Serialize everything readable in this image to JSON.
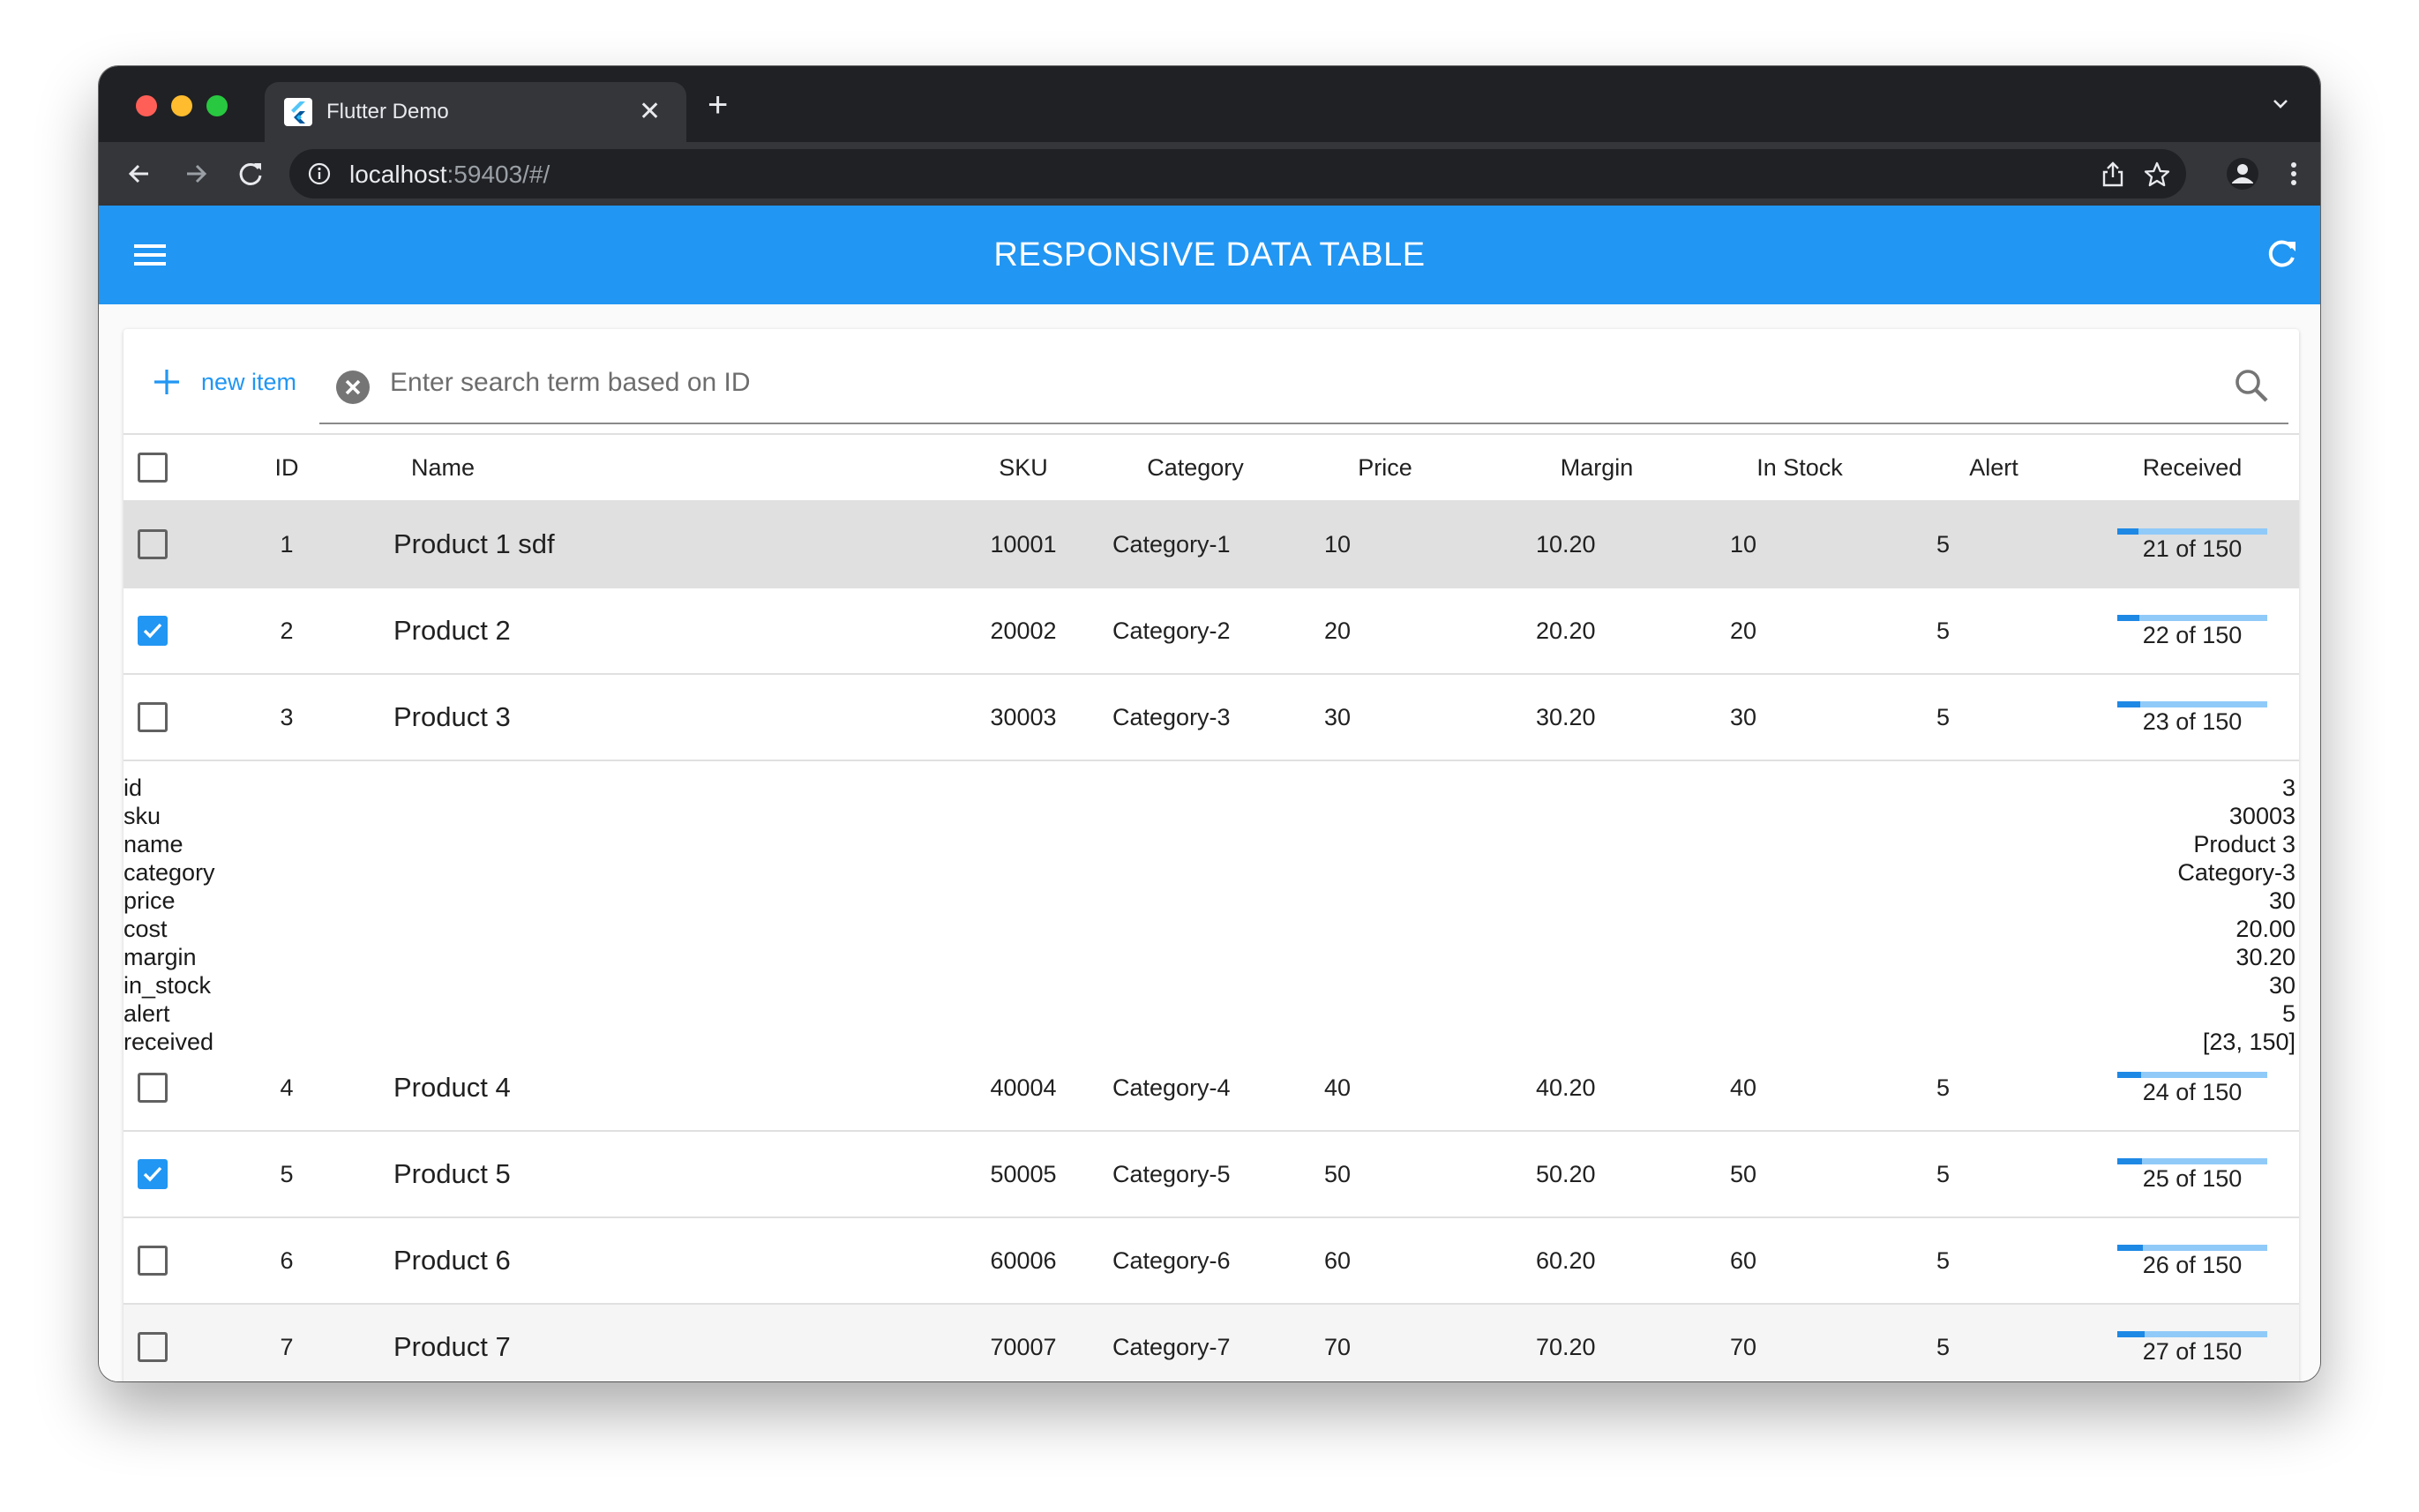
{
  "browser": {
    "tab_title": "Flutter Demo",
    "url_host": "localhost",
    "url_rest": ":59403/#/"
  },
  "appbar": {
    "title": "RESPONSIVE DATA TABLE"
  },
  "toolbar": {
    "new_item_label": "new item",
    "search_placeholder": "Enter search term based on ID"
  },
  "table": {
    "columns": {
      "id": "ID",
      "name": "Name",
      "sku": "SKU",
      "category": "Category",
      "price": "Price",
      "margin": "Margin",
      "in_stock": "In Stock",
      "alert": "Alert",
      "received": "Received"
    },
    "rows": [
      {
        "id": "1",
        "name": "Product 1 sdf",
        "sku": "10001",
        "category": "Category-1",
        "price": "10",
        "margin": "10.20",
        "in_stock": "10",
        "alert": "5",
        "received": "21 of 150",
        "progress": 0.14,
        "checked": false
      },
      {
        "id": "2",
        "name": "Product 2",
        "sku": "20002",
        "category": "Category-2",
        "price": "20",
        "margin": "20.20",
        "in_stock": "20",
        "alert": "5",
        "received": "22 of 150",
        "progress": 0.1467,
        "checked": true
      },
      {
        "id": "3",
        "name": "Product 3",
        "sku": "30003",
        "category": "Category-3",
        "price": "30",
        "margin": "30.20",
        "in_stock": "30",
        "alert": "5",
        "received": "23 of 150",
        "progress": 0.1533,
        "checked": false
      },
      {
        "id": "4",
        "name": "Product 4",
        "sku": "40004",
        "category": "Category-4",
        "price": "40",
        "margin": "40.20",
        "in_stock": "40",
        "alert": "5",
        "received": "24 of 150",
        "progress": 0.16,
        "checked": false
      },
      {
        "id": "5",
        "name": "Product 5",
        "sku": "50005",
        "category": "Category-5",
        "price": "50",
        "margin": "50.20",
        "in_stock": "50",
        "alert": "5",
        "received": "25 of 150",
        "progress": 0.1667,
        "checked": true
      },
      {
        "id": "6",
        "name": "Product 6",
        "sku": "60006",
        "category": "Category-6",
        "price": "60",
        "margin": "60.20",
        "in_stock": "60",
        "alert": "5",
        "received": "26 of 150",
        "progress": 0.1733,
        "checked": false
      },
      {
        "id": "7",
        "name": "Product 7",
        "sku": "70007",
        "category": "Category-7",
        "price": "70",
        "margin": "70.20",
        "in_stock": "70",
        "alert": "5",
        "received": "27 of 150",
        "progress": 0.18,
        "checked": false
      }
    ],
    "details": [
      {
        "key": "id",
        "value": "3"
      },
      {
        "key": "sku",
        "value": "30003"
      },
      {
        "key": "name",
        "value": "Product 3"
      },
      {
        "key": "category",
        "value": "Category-3"
      },
      {
        "key": "price",
        "value": "30"
      },
      {
        "key": "cost",
        "value": "20.00"
      },
      {
        "key": "margin",
        "value": "30.20"
      },
      {
        "key": "in_stock",
        "value": "30"
      },
      {
        "key": "alert",
        "value": "5"
      },
      {
        "key": "received",
        "value": "[23, 150]"
      }
    ]
  }
}
